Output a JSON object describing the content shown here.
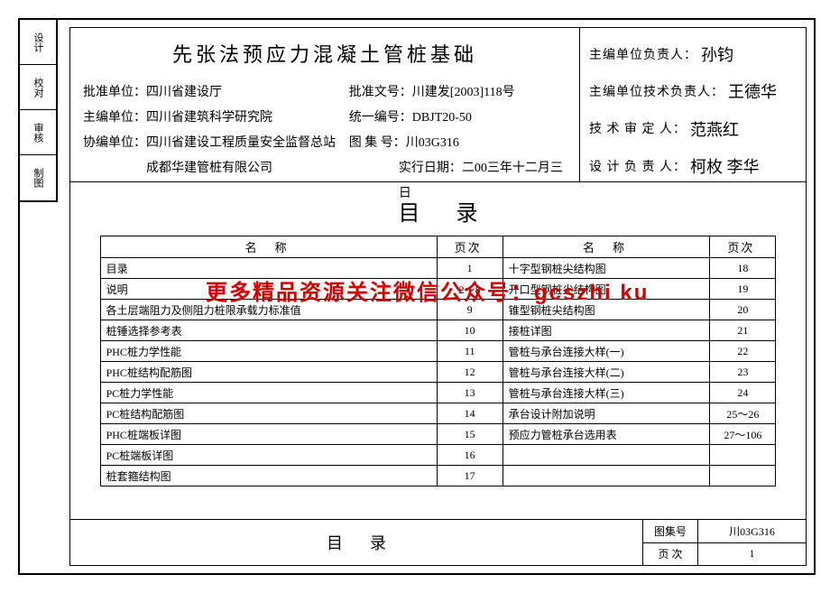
{
  "side": [
    "设计",
    "校对",
    "审核",
    "制图"
  ],
  "header": {
    "title": "先张法预应力混凝土管桩基础",
    "l1a": "批准单位：",
    "l1b": "四川省建设厅",
    "l2a": "主编单位：",
    "l2b": "四川省建筑科学研究院",
    "l3a": "协编单位：",
    "l3b": "四川省建设工程质量安全监督总站",
    "l4b": "成都华建管桩有限公司",
    "r1a": "批准文号：",
    "r1b": "川建发[2003]118号",
    "r2a": "统一编号：",
    "r2b": "DBJT20-50",
    "r3a": "图 集 号：",
    "r3b": "川03G316",
    "r4a": "实行日期：",
    "r4b": "二00三年十二月三日"
  },
  "sigs": [
    {
      "lbl": "主编单位负责人：",
      "hand": "孙钧"
    },
    {
      "lbl": "主编单位技术负责人：",
      "hand": "王德华"
    },
    {
      "lbl": "技 术 审 定 人：",
      "hand": "范燕红"
    },
    {
      "lbl": "设 计 负 责 人：",
      "hand": "柯枚 李华"
    }
  ],
  "toc_title": "目录",
  "cols": {
    "name": "名称",
    "page": "页次"
  },
  "toc": [
    [
      {
        "n": "目录",
        "p": "1"
      },
      {
        "n": "十字型钢桩尖结构图",
        "p": "18"
      }
    ],
    [
      {
        "n": "说明",
        "p": "2～8"
      },
      {
        "n": "开口型钢桩尖结构图",
        "p": "19"
      }
    ],
    [
      {
        "n": "各土层端阻力及侧阻力桩限承载力标准值",
        "p": "9"
      },
      {
        "n": "锥型钢桩尖结构图",
        "p": "20"
      }
    ],
    [
      {
        "n": "桩锤选择参考表",
        "p": "10"
      },
      {
        "n": "接桩详图",
        "p": "21"
      }
    ],
    [
      {
        "n": "PHC桩力学性能",
        "p": "11"
      },
      {
        "n": "管桩与承台连接大样(一)",
        "p": "22"
      }
    ],
    [
      {
        "n": "PHC桩结构配筋图",
        "p": "12"
      },
      {
        "n": "管桩与承台连接大样(二)",
        "p": "23"
      }
    ],
    [
      {
        "n": "PC桩力学性能",
        "p": "13"
      },
      {
        "n": "管桩与承台连接大样(三)",
        "p": "24"
      }
    ],
    [
      {
        "n": "PC桩结构配筋图",
        "p": "14"
      },
      {
        "n": "承台设计附加说明",
        "p": "25～26"
      }
    ],
    [
      {
        "n": "PHC桩端板详图",
        "p": "15"
      },
      {
        "n": "预应力管桩承台选用表",
        "p": "27～106"
      }
    ],
    [
      {
        "n": "PC桩端板详图",
        "p": "16"
      },
      {
        "n": "",
        "p": ""
      }
    ],
    [
      {
        "n": "桩套箍结构图",
        "p": "17"
      },
      {
        "n": "",
        "p": ""
      }
    ]
  ],
  "watermark": "更多精品资源关注微信公众号：gcszhi ku",
  "footer": {
    "name": "目录",
    "code_lbl": "图集号",
    "code": "川03G316",
    "pg_lbl": "页 次",
    "pg": "1"
  }
}
